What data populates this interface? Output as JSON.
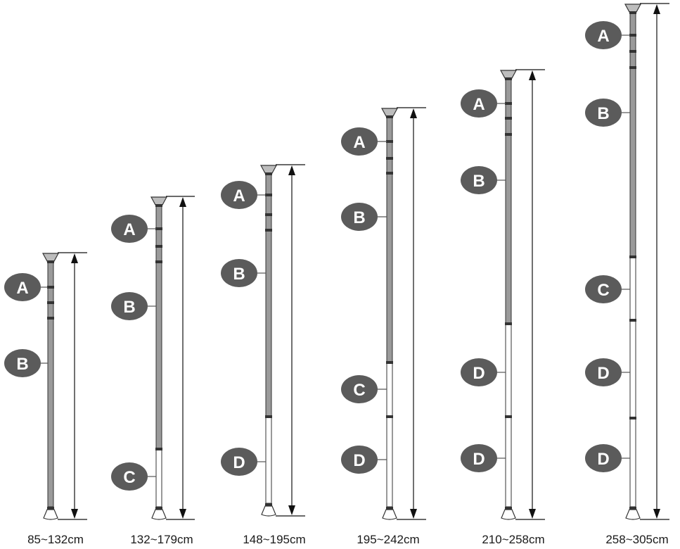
{
  "poles": [
    {
      "size_label": "85~132cm",
      "segments": [
        "A",
        "B"
      ]
    },
    {
      "size_label": "132~179cm",
      "segments": [
        "A",
        "B",
        "C"
      ]
    },
    {
      "size_label": "148~195cm",
      "segments": [
        "A",
        "B",
        "D"
      ]
    },
    {
      "size_label": "195~242cm",
      "segments": [
        "A",
        "B",
        "C",
        "D"
      ]
    },
    {
      "size_label": "210~258cm",
      "segments": [
        "A",
        "B",
        "D",
        "D"
      ]
    },
    {
      "size_label": "258~305cm",
      "segments": [
        "A",
        "B",
        "C",
        "D",
        "D"
      ]
    }
  ],
  "colors": {
    "badge": "#5b5b5b",
    "pole_dark": "#9a9a9a",
    "pole_light": "#ffffff",
    "outline": "#333333"
  }
}
